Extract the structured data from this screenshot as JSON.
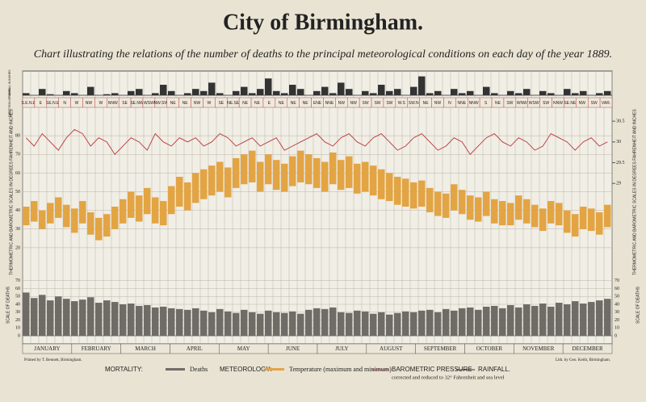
{
  "chart_data": [
    {
      "type": "bar",
      "title": "City of Birmingham.",
      "subtitle": "Chart illustrating the relations of the number of deaths to the principal meteorological conditions on each day of the year 1889.",
      "side_labels": [
        "RAINFALL IN INCHES",
        "DIRECTION OF WIND"
      ],
      "xlim": [
        1,
        366
      ],
      "x": [
        1,
        6,
        11,
        16,
        21,
        26,
        31,
        36,
        41,
        46,
        51,
        56,
        61,
        66,
        71,
        76,
        81,
        86,
        91,
        96,
        101,
        106,
        111,
        116,
        121,
        126,
        131,
        136,
        141,
        146,
        151,
        156,
        161,
        166,
        171,
        176,
        181,
        186,
        191,
        196,
        201,
        206,
        211,
        216,
        221,
        226,
        231,
        236,
        241,
        246,
        251,
        256,
        261,
        266,
        271,
        276,
        281,
        286,
        291,
        296,
        301,
        306,
        311,
        316,
        321,
        326,
        331,
        336,
        341,
        346,
        351,
        356,
        361
      ],
      "ylim": [
        0,
        1
      ],
      "color": "#333333",
      "name": "RAINFALL.",
      "values": [
        0.1,
        0,
        0.3,
        0.05,
        0,
        0.2,
        0.1,
        0,
        0.4,
        0,
        0.05,
        0.1,
        0,
        0.2,
        0.3,
        0,
        0.1,
        0.5,
        0.2,
        0,
        0.1,
        0.3,
        0.2,
        0.6,
        0.1,
        0,
        0.2,
        0.4,
        0.1,
        0.3,
        0.8,
        0.2,
        0.1,
        0.5,
        0.3,
        0,
        0.2,
        0.4,
        0.1,
        0.6,
        0.3,
        0,
        0.2,
        0.1,
        0.5,
        0.2,
        0.3,
        0,
        0.4,
        0.9,
        0.1,
        0.2,
        0,
        0.3,
        0.1,
        0.2,
        0,
        0.4,
        0.1,
        0,
        0.2,
        0.1,
        0.3,
        0,
        0.2,
        0.1,
        0,
        0.3,
        0.1,
        0.2,
        0,
        0.1,
        0.2
      ],
      "wind": [
        "S.E.N.E",
        "E",
        "SE.N.E",
        "N",
        "W",
        "NW",
        "W",
        "NNW",
        "SE",
        "SE.NW",
        "WSW",
        "NW.SW",
        "NE",
        "NE",
        "NW",
        "W",
        "SE",
        "NE.SE",
        "NE",
        "NE",
        "E",
        "NE",
        "NE",
        "NE",
        "ENE",
        "NNE",
        "NW",
        "NW",
        "SW",
        "SW",
        "SW",
        "W.S",
        "SW.N",
        "NE",
        "NW",
        "N",
        "NNE",
        "NNW",
        "S",
        "NE",
        "SW",
        "WNW",
        "WSW",
        "SW",
        "NNW",
        "SE.NE",
        "NW",
        "SW",
        "VAR."
      ]
    },
    {
      "type": "range",
      "label": "THERMOMETRIC AND BAROMETRIC SCALES IN DEGREES FAHRENHEIT AND INCHES",
      "section_label": "METEOROLOGY:",
      "xlim": [
        1,
        366
      ],
      "x": [
        1,
        6,
        11,
        16,
        21,
        26,
        31,
        36,
        41,
        46,
        51,
        56,
        61,
        66,
        71,
        76,
        81,
        86,
        91,
        96,
        101,
        106,
        111,
        116,
        121,
        126,
        131,
        136,
        141,
        146,
        151,
        156,
        161,
        166,
        171,
        176,
        181,
        186,
        191,
        196,
        201,
        206,
        211,
        216,
        221,
        226,
        231,
        236,
        241,
        246,
        251,
        256,
        261,
        266,
        271,
        276,
        281,
        286,
        291,
        296,
        301,
        306,
        311,
        316,
        321,
        326,
        331,
        336,
        341,
        346,
        351,
        356,
        361
      ],
      "ylim": [
        10,
        90
      ],
      "yticks": [
        20,
        30,
        40,
        50,
        60,
        70,
        80
      ],
      "y2lim": [
        27,
        30.6
      ],
      "y2ticks": [
        29,
        29.5,
        30,
        30.5
      ],
      "grid": true,
      "series": [
        {
          "name": "Temperature (maximum and minimum)",
          "color": "#e3a443",
          "values": [
            42,
            45,
            40,
            44,
            47,
            43,
            41,
            45,
            39,
            36,
            38,
            42,
            46,
            50,
            48,
            52,
            47,
            45,
            53,
            58,
            55,
            60,
            62,
            64,
            66,
            63,
            68,
            70,
            72,
            66,
            70,
            67,
            65,
            69,
            72,
            70,
            68,
            66,
            71,
            67,
            69,
            65,
            66,
            64,
            62,
            60,
            58,
            57,
            55,
            56,
            52,
            50,
            49,
            54,
            51,
            48,
            47,
            50,
            46,
            45,
            44,
            48,
            46,
            43,
            41,
            45,
            44,
            40,
            38,
            42,
            41,
            39,
            43
          ]
        },
        {
          "color": "#e3a443",
          "values": [
            32,
            34,
            30,
            33,
            36,
            31,
            28,
            33,
            27,
            24,
            26,
            30,
            33,
            36,
            34,
            38,
            33,
            32,
            38,
            42,
            40,
            44,
            46,
            48,
            50,
            47,
            52,
            54,
            55,
            50,
            54,
            51,
            50,
            53,
            55,
            54,
            52,
            50,
            54,
            51,
            52,
            49,
            50,
            48,
            46,
            45,
            43,
            42,
            41,
            42,
            39,
            37,
            36,
            40,
            38,
            35,
            34,
            37,
            33,
            32,
            32,
            35,
            33,
            31,
            29,
            33,
            32,
            28,
            26,
            30,
            29,
            27,
            31
          ]
        },
        {
          "name": "BAROMETRIC PRESSURE",
          "note": "corrected and reduced to 32° Fahrenheit and sea level",
          "color": "#b83a3a",
          "axis": "y2",
          "values": [
            30.1,
            29.9,
            30.2,
            30.0,
            29.8,
            30.1,
            30.3,
            30.2,
            29.9,
            30.1,
            30.0,
            29.7,
            29.9,
            30.1,
            30.0,
            29.8,
            30.2,
            30.0,
            29.9,
            30.1,
            30.0,
            30.1,
            29.9,
            30.0,
            30.2,
            30.1,
            29.9,
            30.0,
            30.1,
            29.9,
            30.0,
            30.1,
            29.8,
            29.9,
            30.0,
            30.1,
            30.2,
            30.0,
            29.9,
            30.1,
            30.2,
            30.0,
            29.9,
            30.1,
            30.2,
            30.0,
            29.8,
            29.9,
            30.1,
            30.2,
            30.0,
            29.8,
            29.9,
            30.1,
            30.0,
            29.7,
            29.9,
            30.1,
            30.2,
            30.0,
            29.9,
            30.1,
            30.0,
            29.8,
            29.9,
            30.2,
            30.1,
            30.0,
            29.8,
            30.0,
            30.1,
            29.9,
            30.0
          ]
        }
      ]
    },
    {
      "type": "bar",
      "label": "SCALE OF DEATHS",
      "section_label": "MORTALITY:",
      "name": "Deaths",
      "color": "#6f6c68",
      "xlim": [
        1,
        366
      ],
      "x": [
        1,
        6,
        11,
        16,
        21,
        26,
        31,
        36,
        41,
        46,
        51,
        56,
        61,
        66,
        71,
        76,
        81,
        86,
        91,
        96,
        101,
        106,
        111,
        116,
        121,
        126,
        131,
        136,
        141,
        146,
        151,
        156,
        161,
        166,
        171,
        176,
        181,
        186,
        191,
        196,
        201,
        206,
        211,
        216,
        221,
        226,
        231,
        236,
        241,
        246,
        251,
        256,
        261,
        266,
        271,
        276,
        281,
        286,
        291,
        296,
        301,
        306,
        311,
        316,
        321,
        326,
        331,
        336,
        341,
        346,
        351,
        356,
        361
      ],
      "ylim": [
        0,
        80
      ],
      "yticks": [
        0,
        10,
        20,
        30,
        40,
        50,
        60,
        70
      ],
      "values": [
        55,
        48,
        52,
        45,
        50,
        47,
        44,
        46,
        49,
        42,
        45,
        43,
        40,
        41,
        38,
        39,
        36,
        37,
        35,
        34,
        33,
        35,
        32,
        30,
        34,
        31,
        29,
        33,
        30,
        28,
        32,
        30,
        29,
        31,
        28,
        33,
        35,
        34,
        36,
        30,
        29,
        32,
        31,
        28,
        30,
        27,
        29,
        31,
        30,
        32,
        33,
        30,
        34,
        32,
        35,
        36,
        33,
        37,
        38,
        35,
        39,
        36,
        40,
        38,
        41,
        37,
        42,
        40,
        44,
        41,
        43,
        45,
        47
      ],
      "months": [
        "JANUARY",
        "FEBRUARY",
        "MARCH",
        "APRIL",
        "MAY",
        "JUNE",
        "JULY",
        "AUGUST",
        "SEPTEMBER",
        "OCTOBER",
        "NOVEMBER",
        "DECEMBER"
      ],
      "credits": [
        "Printed by T. Bennett, Birmingham.",
        "Lith. by Geo. Keith, Birmingham."
      ]
    }
  ]
}
